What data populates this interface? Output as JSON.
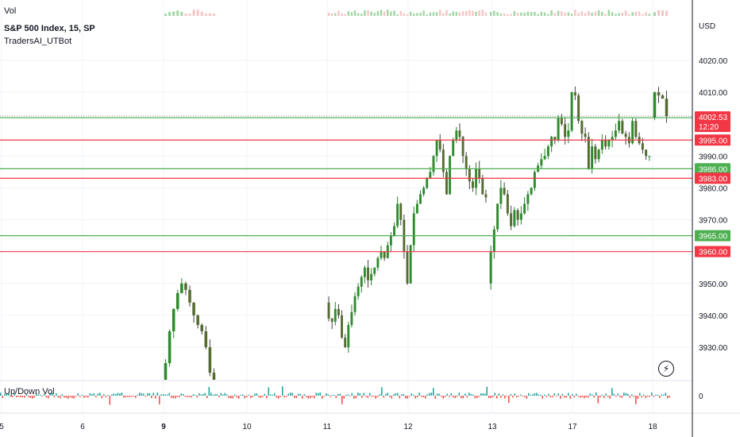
{
  "header": {
    "vol_label": "Vol",
    "title": "S&P 500 Index, 15, SP",
    "indicator_name": "TradersAI_UTBot",
    "updown_label": "Up/Down Vol",
    "currency": "USD"
  },
  "icons": {
    "flash": "flash-icon"
  },
  "colors": {
    "up": "#26a69a",
    "up_candle": "#2e7d32",
    "down": "#ef5350",
    "bull_body": "#2e8b2e",
    "bear_body": "#556b2f",
    "support": "#4caf50",
    "resistance": "#f23645",
    "price_tag": "#f23645",
    "grid": "#f0f3fa",
    "text": "#131722"
  },
  "price_tag": {
    "value": "4002.53",
    "countdown": "12:20"
  },
  "chart_data": {
    "type": "candlestick",
    "title": "S&P 500 Index, 15, SP",
    "ylim": [
      3920,
      4030
    ],
    "y_ticks": [
      "4020.00",
      "4010.00",
      "3990.00",
      "3980.00",
      "3970.00",
      "3950.00",
      "3940.00",
      "3930.00"
    ],
    "x_tick_labels": [
      "5",
      "6",
      "9",
      "10",
      "11",
      "12",
      "13",
      "17",
      "18"
    ],
    "bold_x_ticks": [
      "9"
    ],
    "levels": [
      {
        "label": "4002.00",
        "value": 4002.0,
        "kind": "support"
      },
      {
        "label": "3995.00",
        "value": 3995.0,
        "kind": "resistance"
      },
      {
        "label": "3986.00",
        "value": 3986.0,
        "kind": "support"
      },
      {
        "label": "3983.00",
        "value": 3983.0,
        "kind": "resistance"
      },
      {
        "label": "3965.00",
        "value": 3965.0,
        "kind": "support"
      },
      {
        "label": "3960.00",
        "value": 3960.0,
        "kind": "resistance"
      }
    ],
    "last_price": 4002.53,
    "updown_zero_label": "0",
    "segments": [
      {
        "day": "9",
        "pts": [
          3919,
          3925,
          3935,
          3942,
          3947,
          3950,
          3948,
          3944,
          3940,
          3937,
          3935,
          3930,
          3922,
          3918
        ]
      },
      {
        "day": "11",
        "pts": [
          3944,
          3939,
          3938,
          3942,
          3940,
          3933,
          3930,
          3937,
          3941,
          3946,
          3949,
          3952,
          3955,
          3951,
          3953,
          3955,
          3958,
          3960,
          3958,
          3962,
          3965,
          3968,
          3975,
          3970,
          3960,
          3950,
          3962,
          3972,
          3975,
          3978,
          3980,
          3983,
          3985,
          3990,
          3995,
          3992,
          3985,
          3978,
          3990,
          3995,
          3998,
          3996,
          3990,
          3986,
          3982,
          3980,
          3986,
          3983,
          3978,
          3977
        ]
      },
      {
        "day": "13",
        "pts": [
          3950,
          3960,
          3967,
          3975,
          3980,
          3978,
          3972,
          3968,
          3973,
          3970,
          3972,
          3975,
          3978,
          3980,
          3985,
          3987,
          3989,
          3990,
          3993,
          3996,
          3995,
          4002,
          4000,
          3996,
          3998,
          4010,
          4009,
          4001,
          3997,
          3996,
          3986,
          3993,
          3989,
          3992,
          3995,
          3993,
          3995,
          3996,
          3998,
          4001,
          3997,
          3996,
          3994,
          4001,
          3996,
          3994,
          3992,
          3990,
          3990
        ]
      },
      {
        "day": "18",
        "pts": [
          4002,
          4010,
          4009,
          4008,
          4002.53
        ]
      }
    ]
  }
}
